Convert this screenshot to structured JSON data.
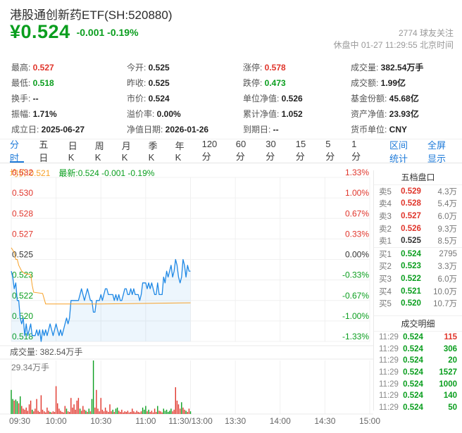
{
  "colors": {
    "red": "#e0352b",
    "green": "#0a9e1e",
    "blue": "#1d7ad9",
    "line_blue": "#1e88e5",
    "orange": "#f7a128",
    "grid": "#f0f0f0",
    "area_fill": "rgba(30,136,229,0.08)"
  },
  "header": {
    "title": "港股通创新药ETF(SH:520880)",
    "price": "¥0.524",
    "change": "-0.001 -0.19%",
    "watchers": "2774 球友关注",
    "status_line": "休盘中 01-27 11:29:55 北京时间"
  },
  "stats": {
    "columns": [
      [
        {
          "label": "最高: ",
          "value": "0.527",
          "color": "red"
        },
        {
          "label": "最低: ",
          "value": "0.518",
          "color": "green"
        },
        {
          "label": "换手: ",
          "value": "--",
          "color": ""
        },
        {
          "label": "振幅: ",
          "value": "1.71%",
          "color": ""
        },
        {
          "label": "成立日: ",
          "value": "2025-06-27",
          "color": ""
        }
      ],
      [
        {
          "label": "今开: ",
          "value": "0.525",
          "color": ""
        },
        {
          "label": "昨收: ",
          "value": "0.525",
          "color": ""
        },
        {
          "label": "市价: ",
          "value": "0.524",
          "color": ""
        },
        {
          "label": "溢价率: ",
          "value": "0.00%",
          "color": ""
        },
        {
          "label": "净值日期: ",
          "value": "2026-01-26",
          "color": ""
        }
      ],
      [
        {
          "label": "涨停: ",
          "value": "0.578",
          "color": "red"
        },
        {
          "label": "跌停: ",
          "value": "0.473",
          "color": "green"
        },
        {
          "label": "单位净值: ",
          "value": "0.526",
          "color": ""
        },
        {
          "label": "累计净值: ",
          "value": "1.052",
          "color": ""
        },
        {
          "label": "到期日: ",
          "value": "--",
          "color": ""
        }
      ],
      [
        {
          "label": "成交量: ",
          "value": "382.54万手",
          "color": ""
        },
        {
          "label": "成交额: ",
          "value": "1.99亿",
          "color": ""
        },
        {
          "label": "基金份额: ",
          "value": "45.68亿",
          "color": ""
        },
        {
          "label": "资产净值: ",
          "value": "23.93亿",
          "color": ""
        },
        {
          "label": "货币单位: ",
          "value": "CNY",
          "color": ""
        }
      ]
    ]
  },
  "tabs": {
    "items": [
      {
        "label": "分时",
        "active": true
      },
      {
        "label": "五日",
        "active": false
      },
      {
        "label": "日K",
        "active": false
      },
      {
        "label": "周K",
        "active": false
      },
      {
        "label": "月K",
        "active": false
      },
      {
        "label": "季K",
        "active": false
      },
      {
        "label": "年K",
        "active": false
      },
      {
        "label": "120分",
        "active": false
      },
      {
        "label": "60分",
        "active": false
      },
      {
        "label": "30分",
        "active": false
      },
      {
        "label": "15分",
        "active": false
      },
      {
        "label": "5分",
        "active": false
      },
      {
        "label": "1分",
        "active": false
      }
    ],
    "links": [
      "区间统计",
      "全屏显示"
    ]
  },
  "legend": {
    "avg": "均价:0.521",
    "latest": "最新:0.524 -0.001 -0.19%"
  },
  "chart_data": {
    "type": "line",
    "title": "分时图 (intraday)",
    "prev_close": 0.525,
    "ylim": [
      0.518,
      0.532
    ],
    "y_left_labels": [
      "0.532",
      "0.530",
      "0.528",
      "0.527",
      "0.525",
      "0.523",
      "0.522",
      "0.520",
      "0.518"
    ],
    "y_right_labels": [
      "1.33%",
      "1.00%",
      "0.67%",
      "0.33%",
      "0.00%",
      "-0.33%",
      "-0.67%",
      "-1.00%",
      "-1.33%"
    ],
    "x_axis_labels": [
      "09:30",
      "10:00",
      "10:30",
      "11:00",
      "11:30/13:00",
      "13:30",
      "14:00",
      "14:30",
      "15:00"
    ],
    "x_total_minutes": 240,
    "volume_label": "成交量: 382.54万手",
    "volume_max_label": "29.34万手",
    "series": [
      {
        "name": "价格",
        "points": [
          [
            0,
            0.524
          ],
          [
            1,
            0.5235
          ],
          [
            2,
            0.5225
          ],
          [
            3,
            0.523
          ],
          [
            4,
            0.5215
          ],
          [
            5,
            0.5215
          ],
          [
            6,
            0.52
          ],
          [
            7,
            0.5195
          ],
          [
            8,
            0.52
          ],
          [
            9,
            0.5185
          ],
          [
            10,
            0.5195
          ],
          [
            11,
            0.5185
          ],
          [
            12,
            0.519
          ],
          [
            13,
            0.5195
          ],
          [
            14,
            0.5185
          ],
          [
            16,
            0.5185
          ],
          [
            17,
            0.519
          ],
          [
            18,
            0.5185
          ],
          [
            19,
            0.519
          ],
          [
            20,
            0.518
          ],
          [
            21,
            0.519
          ],
          [
            22,
            0.5185
          ],
          [
            23,
            0.519
          ],
          [
            24,
            0.5185
          ],
          [
            25,
            0.519
          ],
          [
            26,
            0.5195
          ],
          [
            27,
            0.519
          ],
          [
            28,
            0.5185
          ],
          [
            30,
            0.5195
          ],
          [
            31,
            0.519
          ],
          [
            32,
            0.5185
          ],
          [
            33,
            0.519
          ],
          [
            34,
            0.5185
          ],
          [
            35,
            0.519
          ],
          [
            36,
            0.5195
          ],
          [
            37,
            0.52
          ],
          [
            38,
            0.5195
          ],
          [
            39,
            0.52
          ],
          [
            40,
            0.5215
          ],
          [
            45,
            0.5215
          ],
          [
            46,
            0.522
          ],
          [
            47,
            0.5225
          ],
          [
            48,
            0.522
          ],
          [
            49,
            0.5215
          ],
          [
            50,
            0.522
          ],
          [
            51,
            0.5225
          ],
          [
            52,
            0.522
          ],
          [
            53,
            0.5215
          ],
          [
            54,
            0.5215
          ],
          [
            55,
            0.5205
          ],
          [
            56,
            0.5205
          ],
          [
            57,
            0.5215
          ],
          [
            59,
            0.5215
          ],
          [
            60,
            0.522
          ],
          [
            61,
            0.5215
          ],
          [
            62,
            0.522
          ],
          [
            63,
            0.5225
          ],
          [
            64,
            0.5225
          ],
          [
            65,
            0.522
          ],
          [
            68,
            0.522
          ],
          [
            69,
            0.5215
          ],
          [
            70,
            0.522
          ],
          [
            71,
            0.5215
          ],
          [
            72,
            0.522
          ],
          [
            73,
            0.5215
          ],
          [
            74,
            0.5215
          ],
          [
            75,
            0.522
          ],
          [
            76,
            0.5225
          ],
          [
            77,
            0.5225
          ],
          [
            78,
            0.522
          ],
          [
            79,
            0.522
          ],
          [
            80,
            0.5225
          ],
          [
            81,
            0.522
          ],
          [
            82,
            0.5225
          ],
          [
            83,
            0.522
          ],
          [
            85,
            0.522
          ],
          [
            86,
            0.5215
          ],
          [
            87,
            0.522
          ],
          [
            88,
            0.523
          ],
          [
            90,
            0.523
          ],
          [
            91,
            0.5225
          ],
          [
            92,
            0.523
          ],
          [
            93,
            0.5225
          ],
          [
            94,
            0.523
          ],
          [
            95,
            0.5225
          ],
          [
            96,
            0.522
          ],
          [
            97,
            0.522
          ],
          [
            98,
            0.523
          ],
          [
            99,
            0.522
          ],
          [
            101,
            0.522
          ],
          [
            102,
            0.5235
          ],
          [
            103,
            0.523
          ],
          [
            104,
            0.524
          ],
          [
            105,
            0.5235
          ],
          [
            106,
            0.524
          ],
          [
            107,
            0.5245
          ],
          [
            108,
            0.5235
          ],
          [
            109,
            0.524
          ],
          [
            110,
            0.525
          ],
          [
            111,
            0.5245
          ],
          [
            112,
            0.5235
          ],
          [
            113,
            0.523
          ],
          [
            114,
            0.5235
          ],
          [
            115,
            0.525
          ],
          [
            116,
            0.5245
          ],
          [
            117,
            0.5235
          ],
          [
            118,
            0.5245
          ],
          [
            119,
            0.524
          ],
          [
            120,
            0.524
          ]
        ]
      },
      {
        "name": "均价",
        "points": [
          [
            0,
            0.526
          ],
          [
            2,
            0.5256
          ],
          [
            3,
            0.525
          ],
          [
            4,
            0.525
          ],
          [
            5,
            0.5245
          ],
          [
            7,
            0.524
          ],
          [
            9,
            0.5238
          ],
          [
            13,
            0.5237
          ],
          [
            14,
            0.5228
          ],
          [
            15,
            0.5222
          ],
          [
            21,
            0.5221
          ],
          [
            23,
            0.5212
          ],
          [
            60,
            0.5212
          ],
          [
            120,
            0.5213
          ]
        ]
      }
    ],
    "volume_bars": [
      [
        0.45,
        "g"
      ],
      [
        0.28,
        "g"
      ],
      [
        0.25,
        "r"
      ],
      [
        0.27,
        "g"
      ],
      [
        0.24,
        "g"
      ],
      [
        0.2,
        "r"
      ],
      [
        0.33,
        "g"
      ],
      [
        0.15,
        "r"
      ],
      [
        0.1,
        "r"
      ],
      [
        0.08,
        "r"
      ],
      [
        0.12,
        "r"
      ],
      [
        0.06,
        "r"
      ],
      [
        0.18,
        "r"
      ],
      [
        0.25,
        "r"
      ],
      [
        0.08,
        "g"
      ],
      [
        0.05,
        "r"
      ],
      [
        0.1,
        "r"
      ],
      [
        0.28,
        "r"
      ],
      [
        0.06,
        "r"
      ],
      [
        0.04,
        "r"
      ],
      [
        0.35,
        "r"
      ],
      [
        0.08,
        "r"
      ],
      [
        0.05,
        "r"
      ],
      [
        0.03,
        "r"
      ],
      [
        0.12,
        "r"
      ],
      [
        0.06,
        "r"
      ],
      [
        0.04,
        "g"
      ],
      [
        0.03,
        "r"
      ],
      [
        0.05,
        "r"
      ],
      [
        0.04,
        "r"
      ],
      [
        0.52,
        "r"
      ],
      [
        0.2,
        "r"
      ],
      [
        0.1,
        "r"
      ],
      [
        0.06,
        "r"
      ],
      [
        0.04,
        "r"
      ],
      [
        0.03,
        "r"
      ],
      [
        0.15,
        "r"
      ],
      [
        0.1,
        "g"
      ],
      [
        0.05,
        "r"
      ],
      [
        0.04,
        "r"
      ],
      [
        0.3,
        "r"
      ],
      [
        0.12,
        "r"
      ],
      [
        0.18,
        "r"
      ],
      [
        0.08,
        "r"
      ],
      [
        0.25,
        "r"
      ],
      [
        0.3,
        "r"
      ],
      [
        0.1,
        "g"
      ],
      [
        0.06,
        "r"
      ],
      [
        0.15,
        "r"
      ],
      [
        0.08,
        "r"
      ],
      [
        0.06,
        "g"
      ],
      [
        0.04,
        "r"
      ],
      [
        0.1,
        "g"
      ],
      [
        0.05,
        "r"
      ],
      [
        0.28,
        "g"
      ],
      [
        1.0,
        "g"
      ],
      [
        0.12,
        "r"
      ],
      [
        0.45,
        "r"
      ],
      [
        0.1,
        "r"
      ],
      [
        0.05,
        "r"
      ],
      [
        0.3,
        "r"
      ],
      [
        0.08,
        "r"
      ],
      [
        0.05,
        "r"
      ],
      [
        0.12,
        "r"
      ],
      [
        0.06,
        "r"
      ],
      [
        0.04,
        "r"
      ],
      [
        0.18,
        "r"
      ],
      [
        0.05,
        "r"
      ],
      [
        0.08,
        "g"
      ],
      [
        0.04,
        "r"
      ],
      [
        0.1,
        "g"
      ],
      [
        0.12,
        "g"
      ],
      [
        0.06,
        "r"
      ],
      [
        0.04,
        "r"
      ],
      [
        0.08,
        "r"
      ],
      [
        0.03,
        "r"
      ],
      [
        0.05,
        "r"
      ],
      [
        0.04,
        "r"
      ],
      [
        0.06,
        "r"
      ],
      [
        0.03,
        "r"
      ],
      [
        0.04,
        "r"
      ],
      [
        0.1,
        "r"
      ],
      [
        0.05,
        "r"
      ],
      [
        0.03,
        "r"
      ],
      [
        0.06,
        "r"
      ],
      [
        0.04,
        "r"
      ],
      [
        0.03,
        "r"
      ],
      [
        0.05,
        "r"
      ],
      [
        0.12,
        "g"
      ],
      [
        0.08,
        "g"
      ],
      [
        0.15,
        "g"
      ],
      [
        0.05,
        "r"
      ],
      [
        0.08,
        "g"
      ],
      [
        0.04,
        "r"
      ],
      [
        0.06,
        "r"
      ],
      [
        0.03,
        "r"
      ],
      [
        0.1,
        "r"
      ],
      [
        0.04,
        "r"
      ],
      [
        0.15,
        "g"
      ],
      [
        0.06,
        "r"
      ],
      [
        0.05,
        "r"
      ],
      [
        0.03,
        "r"
      ],
      [
        0.1,
        "g"
      ],
      [
        0.06,
        "g"
      ],
      [
        0.08,
        "g"
      ],
      [
        0.04,
        "g"
      ],
      [
        0.06,
        "g"
      ],
      [
        0.1,
        "g"
      ],
      [
        0.05,
        "r"
      ],
      [
        0.08,
        "r"
      ],
      [
        0.5,
        "r"
      ],
      [
        0.25,
        "r"
      ],
      [
        0.18,
        "r"
      ],
      [
        0.1,
        "r"
      ],
      [
        0.22,
        "g"
      ],
      [
        0.12,
        "r"
      ],
      [
        0.08,
        "r"
      ],
      [
        0.06,
        "g"
      ],
      [
        0.04,
        "r"
      ],
      [
        0.1,
        "r"
      ],
      [
        0.05,
        "g"
      ]
    ]
  },
  "order_book": {
    "title": "五档盘口",
    "asks": [
      {
        "label": "卖5",
        "price": "0.529",
        "price_color": "red",
        "amount": "4.3万"
      },
      {
        "label": "卖4",
        "price": "0.528",
        "price_color": "red",
        "amount": "5.4万"
      },
      {
        "label": "卖3",
        "price": "0.527",
        "price_color": "red",
        "amount": "6.0万"
      },
      {
        "label": "卖2",
        "price": "0.526",
        "price_color": "red",
        "amount": "9.3万"
      },
      {
        "label": "卖1",
        "price": "0.525",
        "price_color": "black",
        "amount": "8.5万"
      }
    ],
    "bids": [
      {
        "label": "买1",
        "price": "0.524",
        "price_color": "green",
        "amount": "2795"
      },
      {
        "label": "买2",
        "price": "0.523",
        "price_color": "green",
        "amount": "3.3万"
      },
      {
        "label": "买3",
        "price": "0.522",
        "price_color": "green",
        "amount": "6.0万"
      },
      {
        "label": "买4",
        "price": "0.521",
        "price_color": "green",
        "amount": "10.0万"
      },
      {
        "label": "买5",
        "price": "0.520",
        "price_color": "green",
        "amount": "10.7万"
      }
    ]
  },
  "transactions": {
    "title": "成交明细",
    "rows": [
      {
        "time": "11:29",
        "price": "0.524",
        "amount": "115",
        "amount_color": "red"
      },
      {
        "time": "11:29",
        "price": "0.524",
        "amount": "306",
        "amount_color": "green"
      },
      {
        "time": "11:29",
        "price": "0.524",
        "amount": "20",
        "amount_color": "green"
      },
      {
        "time": "11:29",
        "price": "0.524",
        "amount": "1527",
        "amount_color": "green"
      },
      {
        "time": "11:29",
        "price": "0.524",
        "amount": "1000",
        "amount_color": "green"
      },
      {
        "time": "11:29",
        "price": "0.524",
        "amount": "140",
        "amount_color": "green"
      },
      {
        "time": "11:29",
        "price": "0.524",
        "amount": "50",
        "amount_color": "green"
      }
    ]
  }
}
